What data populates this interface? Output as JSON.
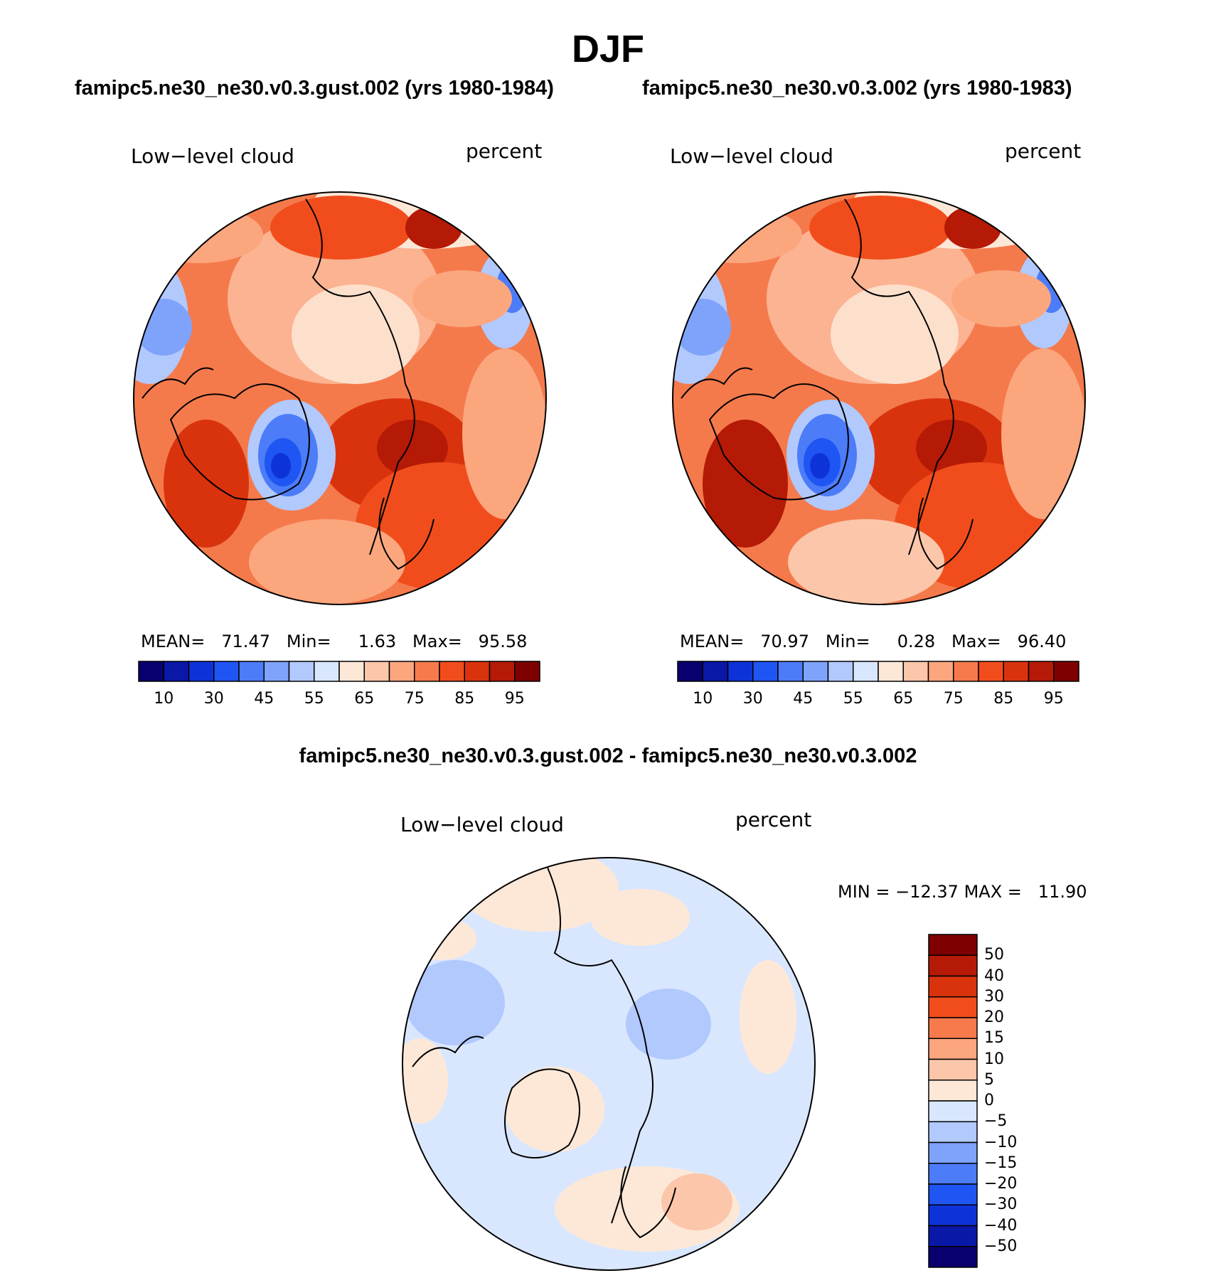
{
  "page": {
    "title": "DJF",
    "diff_title": "famipc5.ne30_ne30.v0.3.gust.002 - famipc5.ne30_ne30.v0.3.002"
  },
  "panels": [
    {
      "case_title": "famipc5.ne30_ne30.v0.3.gust.002 (yrs 1980-1984)",
      "variable": "Low−level cloud",
      "units": "percent",
      "mean_label": "MEAN=",
      "mean": "71.47",
      "min_label": "Min=",
      "min": "1.63",
      "max_label": "Max=",
      "max": "95.58"
    },
    {
      "case_title": "famipc5.ne30_ne30.v0.3.002 (yrs 1980-1983)",
      "variable": "Low−level cloud",
      "units": "percent",
      "mean_label": "MEAN=",
      "mean": "70.97",
      "min_label": "Min=",
      "min": "0.28",
      "max_label": "Max=",
      "max": "96.40"
    }
  ],
  "diff_panel": {
    "variable": "Low−level cloud",
    "units": "percent",
    "min_label": "MIN =",
    "min": "−12.37",
    "max_label": "MAX =",
    "max": "11.90"
  },
  "colorbar": {
    "colors": [
      "#08006e",
      "#0a18a8",
      "#0d33d8",
      "#1f55f2",
      "#4c7cf7",
      "#7fa3fb",
      "#b1c9fd",
      "#d9e7fe",
      "#fde8d8",
      "#fcc6aa",
      "#fca67e",
      "#f77a4c",
      "#f14d1c",
      "#d9330e",
      "#b51a06",
      "#7f0000"
    ],
    "tick_labels": [
      "10",
      "30",
      "45",
      "55",
      "65",
      "75",
      "85",
      "95"
    ]
  },
  "diff_colorbar": {
    "colors": [
      "#7f0000",
      "#b51a06",
      "#d9330e",
      "#f14d1c",
      "#f77a4c",
      "#fca67e",
      "#fcc6aa",
      "#fde8d8",
      "#d9e7fe",
      "#b1c9fd",
      "#7fa3fb",
      "#4c7cf7",
      "#1f55f2",
      "#0d33d8",
      "#0a18a8",
      "#08006e"
    ],
    "tick_labels": [
      "50",
      "40",
      "30",
      "20",
      "15",
      "10",
      "5",
      "0",
      "−5",
      "−10",
      "−15",
      "−20",
      "−30",
      "−40",
      "−50"
    ]
  }
}
